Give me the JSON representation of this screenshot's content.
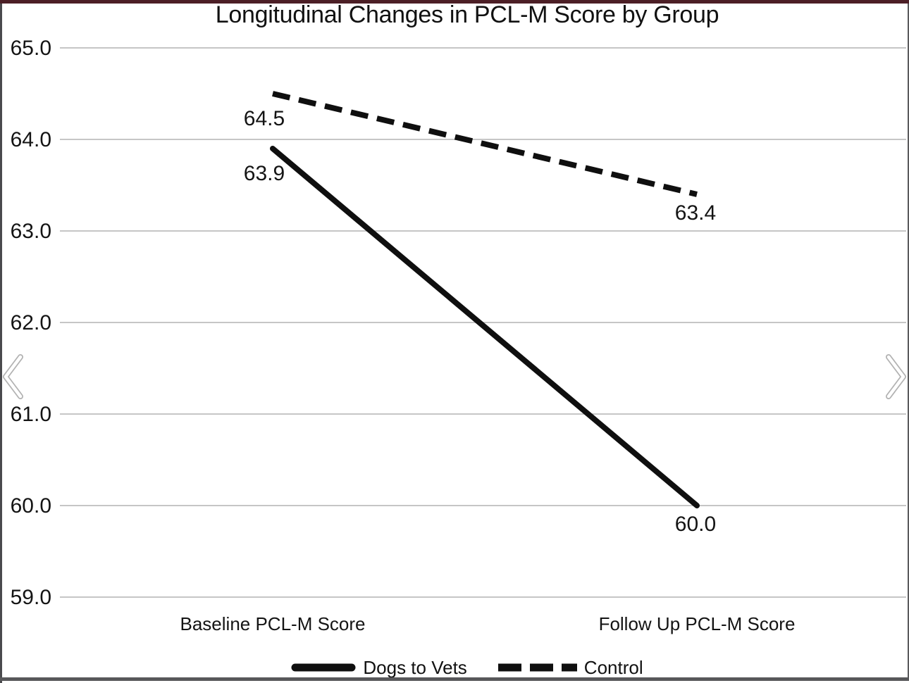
{
  "page": {
    "frame": {
      "top_border_color": "#4c1f26",
      "left_border_color": "#4a4a4d",
      "right_border_color": "#5a5a5c",
      "bottom_bar_color": "#58585a"
    }
  },
  "carousel": {
    "prev_icon": "chevron-left",
    "next_icon": "chevron-right"
  },
  "chart_data": {
    "type": "line",
    "title": "Longitudinal Changes in PCL-M Score by Group",
    "categories": [
      "Baseline PCL-M Score",
      "Follow Up PCL-M Score"
    ],
    "series": [
      {
        "name": "Dogs to Vets",
        "line_style": "solid",
        "values": [
          63.9,
          60.0
        ]
      },
      {
        "name": "Control",
        "line_style": "dashed",
        "values": [
          64.5,
          63.4
        ]
      }
    ],
    "y_ticks": [
      65.0,
      64.0,
      63.0,
      62.0,
      61.0,
      60.0,
      59.0
    ],
    "ylim": [
      59.0,
      65.0
    ],
    "xlabel": "",
    "ylabel": "",
    "tick_decimals": 1,
    "grid": true,
    "data_labels": true,
    "legend_position": "bottom",
    "line_color": "#0f0f0f",
    "grid_color": "#c6c6c6",
    "text_color": "#141414"
  }
}
